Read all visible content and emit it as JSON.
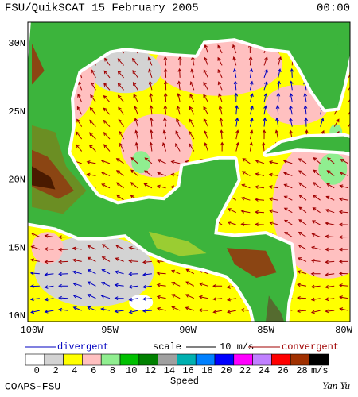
{
  "header": {
    "title": "FSU/QuikSCAT 15 February 2005",
    "time": "00:00"
  },
  "map": {
    "lat_labels": [
      "30N",
      "25N",
      "20N",
      "15N",
      "10N"
    ],
    "lon_labels": [
      "100W",
      "95W",
      "90W",
      "85W",
      "80W"
    ]
  },
  "legend": {
    "divergent": "divergent",
    "scale": "scale",
    "scale_value": "10 m/s",
    "convergent": "convergent"
  },
  "colorbar": {
    "ticks": [
      0,
      2,
      4,
      6,
      8,
      10,
      12,
      14,
      16,
      18,
      20,
      22,
      24,
      26,
      28
    ],
    "colors": [
      "#ffffff",
      "#d3d3d3",
      "#ffff00",
      "#ffc0c0",
      "#90ee90",
      "#00c000",
      "#008000",
      "#a0a0a0",
      "#00b0b0",
      "#0080ff",
      "#0000ff",
      "#ff00ff",
      "#c080ff",
      "#ff0000",
      "#a03000",
      "#000000"
    ],
    "unit": "m/s",
    "label": "Speed"
  },
  "footer": {
    "left": "COAPS-FSU",
    "right": "Yan Yu"
  }
}
